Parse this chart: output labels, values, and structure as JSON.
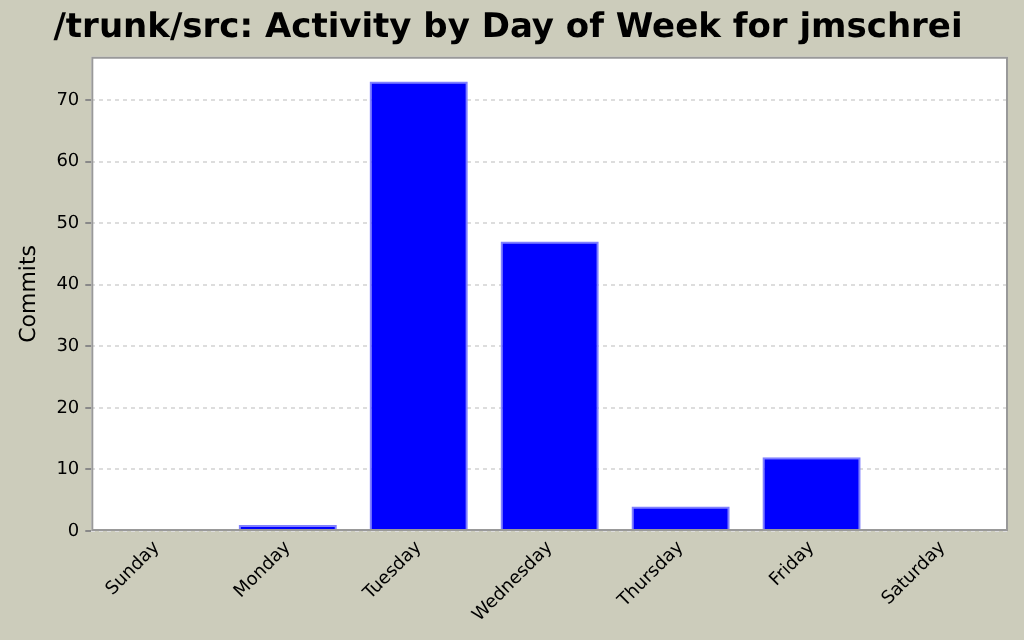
{
  "chart_data": {
    "type": "bar",
    "title": "/trunk/src: Activity by Day of Week for jmschrei",
    "ylabel": "Commits",
    "categories": [
      "Sunday",
      "Monday",
      "Tuesday",
      "Wednesday",
      "Thursday",
      "Friday",
      "Saturday"
    ],
    "values": [
      0,
      1,
      73,
      47,
      4,
      12,
      0
    ],
    "color": "#0000ff",
    "ylim": [
      0,
      77
    ],
    "yticks": [
      0,
      10,
      20,
      30,
      40,
      50,
      60,
      70
    ],
    "grid": "y",
    "legend": false
  }
}
